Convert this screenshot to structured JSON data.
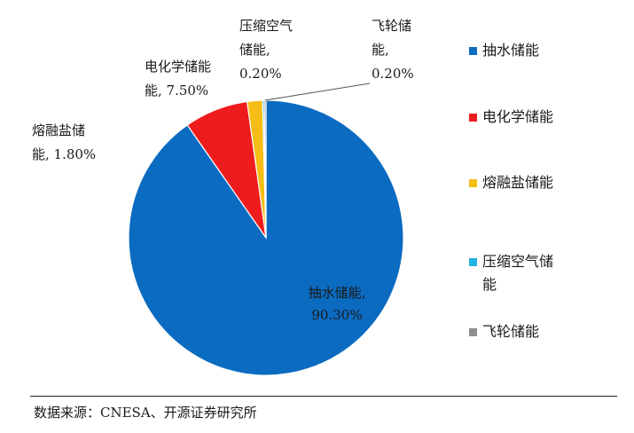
{
  "chart_data": {
    "type": "pie",
    "title": "",
    "categories": [
      "抽水储能",
      "电化学储能",
      "熔融盐储能",
      "压缩空气储能",
      "飞轮储能"
    ],
    "values": [
      90.3,
      7.5,
      1.8,
      0.2,
      0.2
    ],
    "value_labels": [
      "90.30%",
      "7.50%",
      "1.80%",
      "0.20%",
      "0.20%"
    ],
    "slice_label_lines": [
      [
        "抽水储能,",
        "90.30%"
      ],
      [
        "电化学储能",
        "能, 7.50%"
      ],
      [
        "熔融盐储",
        "能, 1.80%"
      ],
      [
        "压缩空气",
        "储能,",
        "0.20%"
      ],
      [
        "飞轮储",
        "能,",
        "0.20%"
      ]
    ],
    "colors": [
      "#0A6BC1",
      "#EE1C1C",
      "#F5BD16",
      "#22B2E6",
      "#8E8E8E"
    ],
    "legend": {
      "position": "right",
      "entries": [
        [
          "抽水储能"
        ],
        [
          "电化学储能"
        ],
        [
          "熔融盐储能"
        ],
        [
          "压缩空气储",
          "能"
        ],
        [
          "飞轮储能"
        ]
      ]
    },
    "start_angle_deg": 0,
    "direction": "clockwise"
  },
  "source": "数据来源：CNESA、开源证券研究所"
}
